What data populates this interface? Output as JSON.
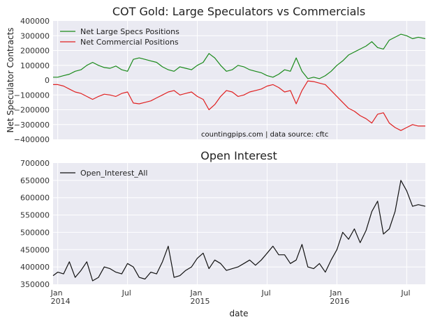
{
  "chart_data": [
    {
      "type": "line",
      "title": "COT Gold: Large Speculators vs Commercials",
      "ylabel": "Net Speculator Contracts",
      "xlabel": "",
      "ylim": [
        -400000,
        400000
      ],
      "yticks": [
        -400000,
        -300000,
        -200000,
        -100000,
        0,
        100000,
        200000,
        300000,
        400000
      ],
      "ytick_labels": [
        "−400000",
        "−300000",
        "−200000",
        "−100000",
        "0",
        "100000",
        "200000",
        "300000",
        "400000"
      ],
      "xlim": [
        -0.4,
        31.6
      ],
      "legend_position": "top-left",
      "annotation": "countingpips.com | data source: cftc",
      "series": [
        {
          "name": "Net Large Specs Positions",
          "color": "#1a8a1a",
          "x": [
            -0.4,
            0,
            0.5,
            1,
            1.5,
            2,
            2.5,
            3,
            3.5,
            4,
            4.5,
            5,
            5.5,
            6,
            6.5,
            7,
            7.5,
            8,
            8.5,
            9,
            9.5,
            10,
            10.5,
            11,
            11.5,
            12,
            12.5,
            13,
            13.5,
            14,
            14.5,
            15,
            15.5,
            16,
            16.5,
            17,
            17.5,
            18,
            18.5,
            19,
            19.5,
            20,
            20.5,
            21,
            21.5,
            22,
            22.5,
            23,
            23.5,
            24,
            24.5,
            25,
            25.5,
            26,
            26.5,
            27,
            27.5,
            28,
            28.5,
            29,
            29.5,
            30,
            30.5,
            31,
            31.6
          ],
          "values": [
            20000,
            20000,
            30000,
            40000,
            60000,
            70000,
            100000,
            120000,
            100000,
            85000,
            80000,
            95000,
            70000,
            60000,
            140000,
            150000,
            140000,
            130000,
            120000,
            90000,
            70000,
            60000,
            90000,
            80000,
            70000,
            100000,
            120000,
            180000,
            150000,
            100000,
            60000,
            70000,
            100000,
            90000,
            70000,
            60000,
            50000,
            30000,
            20000,
            40000,
            70000,
            60000,
            150000,
            60000,
            10000,
            20000,
            10000,
            30000,
            60000,
            100000,
            130000,
            170000,
            190000,
            210000,
            230000,
            260000,
            220000,
            210000,
            270000,
            290000,
            310000,
            300000,
            280000,
            290000,
            280000
          ]
        },
        {
          "name": "Net Commercial Positions",
          "color": "#e02020",
          "x": [
            -0.4,
            0,
            0.5,
            1,
            1.5,
            2,
            2.5,
            3,
            3.5,
            4,
            4.5,
            5,
            5.5,
            6,
            6.5,
            7,
            7.5,
            8,
            8.5,
            9,
            9.5,
            10,
            10.5,
            11,
            11.5,
            12,
            12.5,
            13,
            13.5,
            14,
            14.5,
            15,
            15.5,
            16,
            16.5,
            17,
            17.5,
            18,
            18.5,
            19,
            19.5,
            20,
            20.5,
            21,
            21.5,
            22,
            22.5,
            23,
            23.5,
            24,
            24.5,
            25,
            25.5,
            26,
            26.5,
            27,
            27.5,
            28,
            28.5,
            29,
            29.5,
            30,
            30.5,
            31,
            31.6
          ],
          "values": [
            -30000,
            -30000,
            -40000,
            -60000,
            -80000,
            -90000,
            -110000,
            -130000,
            -110000,
            -95000,
            -100000,
            -110000,
            -90000,
            -80000,
            -155000,
            -160000,
            -150000,
            -140000,
            -120000,
            -100000,
            -80000,
            -70000,
            -100000,
            -90000,
            -80000,
            -110000,
            -130000,
            -200000,
            -165000,
            -110000,
            -70000,
            -80000,
            -110000,
            -100000,
            -80000,
            -70000,
            -60000,
            -40000,
            -30000,
            -50000,
            -80000,
            -70000,
            -160000,
            -70000,
            -5000,
            -10000,
            -20000,
            -30000,
            -70000,
            -110000,
            -150000,
            -190000,
            -210000,
            -240000,
            -260000,
            -290000,
            -230000,
            -220000,
            -290000,
            -320000,
            -340000,
            -320000,
            -300000,
            -310000,
            -310000
          ]
        }
      ]
    },
    {
      "type": "line",
      "title": "Open Interest",
      "xlabel": "date",
      "ylabel": "",
      "ylim": [
        350000,
        700000
      ],
      "yticks": [
        350000,
        400000,
        450000,
        500000,
        550000,
        600000,
        650000,
        700000
      ],
      "ytick_labels": [
        "350000",
        "400000",
        "450000",
        "500000",
        "550000",
        "600000",
        "650000",
        "700000"
      ],
      "xlim": [
        -0.4,
        31.6
      ],
      "xticks": [
        0,
        6,
        12,
        18,
        24,
        30
      ],
      "xtick_labels": [
        "Jan\n2014",
        "Jul",
        "Jan\n2015",
        "Jul",
        "Jan\n2016",
        "Jul"
      ],
      "legend_position": "top-left",
      "series": [
        {
          "name": "Open_Interest_All",
          "color": "#111111",
          "x": [
            -0.4,
            0,
            0.5,
            1,
            1.5,
            2,
            2.5,
            3,
            3.5,
            4,
            4.5,
            5,
            5.5,
            6,
            6.5,
            7,
            7.5,
            8,
            8.5,
            9,
            9.5,
            10,
            10.5,
            11,
            11.5,
            12,
            12.5,
            13,
            13.5,
            14,
            14.5,
            15,
            15.5,
            16,
            16.5,
            17,
            17.5,
            18,
            18.5,
            19,
            19.5,
            20,
            20.5,
            21,
            21.5,
            22,
            22.5,
            23,
            23.5,
            24,
            24.5,
            25,
            25.5,
            26,
            26.5,
            27,
            27.5,
            28,
            28.5,
            29,
            29.5,
            30,
            30.5,
            31,
            31.6
          ],
          "values": [
            375000,
            385000,
            380000,
            415000,
            370000,
            390000,
            415000,
            360000,
            370000,
            400000,
            395000,
            385000,
            380000,
            410000,
            400000,
            370000,
            365000,
            385000,
            380000,
            415000,
            460000,
            370000,
            375000,
            390000,
            400000,
            425000,
            440000,
            395000,
            420000,
            410000,
            390000,
            395000,
            400000,
            410000,
            420000,
            405000,
            420000,
            440000,
            460000,
            435000,
            435000,
            410000,
            420000,
            465000,
            400000,
            395000,
            410000,
            385000,
            420000,
            450000,
            500000,
            480000,
            510000,
            470000,
            505000,
            560000,
            590000,
            495000,
            510000,
            560000,
            650000,
            620000,
            575000,
            580000,
            575000
          ]
        }
      ]
    }
  ]
}
